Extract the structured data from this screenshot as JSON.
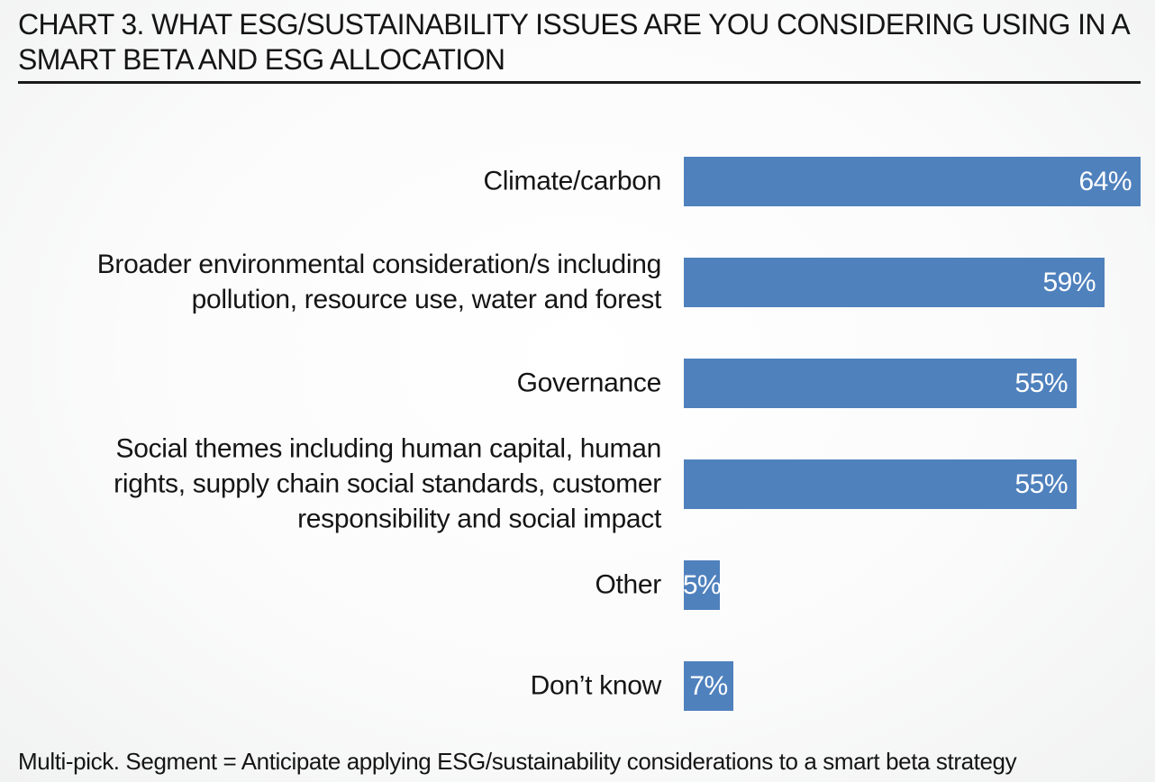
{
  "chart_data": {
    "type": "bar",
    "orientation": "horizontal",
    "title": "CHART 3. WHAT ESG/SUSTAINABILITY ISSUES ARE YOU CONSIDERING USING IN A SMART BETA AND ESG ALLOCATION",
    "categories": [
      "Climate/carbon",
      "Broader environmental consideration/s including pollution, resource use, water and forest",
      "Governance",
      "Social themes including human capital, human rights, supply chain social standards, customer responsibility and social impact",
      "Other",
      "Don’t know"
    ],
    "values": [
      64,
      59,
      55,
      55,
      5,
      7
    ],
    "value_labels": [
      "64%",
      "59%",
      "55%",
      "55%",
      "5%",
      "7%"
    ],
    "unit": "%",
    "xlabel": "",
    "ylabel": "",
    "xlim": [
      0,
      64
    ],
    "bar_color": "#4f81bd",
    "grid": false,
    "legend": "none",
    "footnote": "Multi-pick. Segment = Anticipate applying ESG/sustainability considerations to a smart beta strategy"
  }
}
